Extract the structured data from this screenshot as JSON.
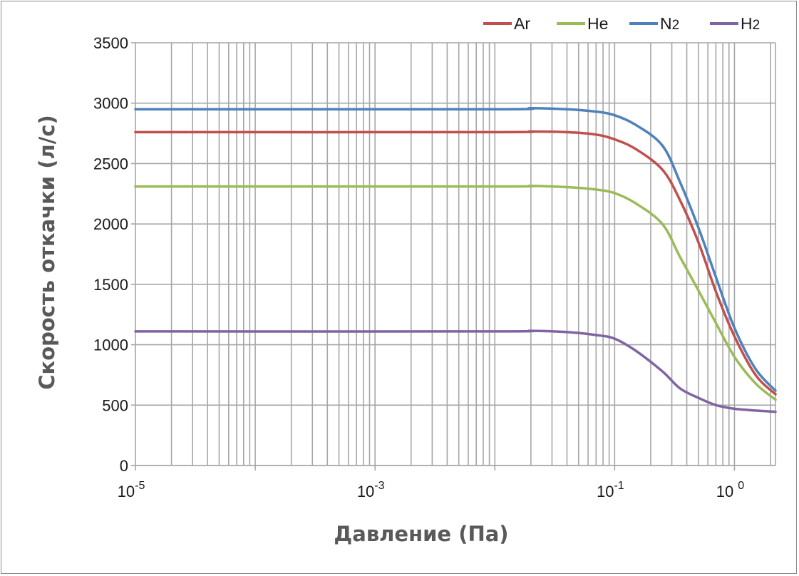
{
  "chart_data": {
    "type": "line",
    "x_scale": "log",
    "xlim": [
      1e-05,
      2.2
    ],
    "ylim": [
      0,
      3500
    ],
    "grid": true,
    "legend_position": "top-right",
    "xlabel": "Давление (Па)",
    "ylabel": "Скорость откачки (л/с)",
    "y_ticks": [
      "0",
      "500",
      "1000",
      "1500",
      "2000",
      "2500",
      "3000",
      "3500"
    ],
    "x_ticks": [
      {
        "base": "10",
        "exp": "-5"
      },
      {
        "base": "10",
        "exp": "-3"
      },
      {
        "base": "10",
        "exp": "-1"
      },
      {
        "base": "10",
        "exp": "0"
      }
    ],
    "series": [
      {
        "name": "Ar",
        "sub": "",
        "color": "#c0504d",
        "x": [
          1e-05,
          0.01,
          0.02,
          0.04,
          0.07,
          0.1,
          0.15,
          0.25,
          0.35,
          0.5,
          0.7,
          1.0,
          1.5,
          2.2
        ],
        "y": [
          2760,
          2760,
          2765,
          2760,
          2740,
          2700,
          2620,
          2450,
          2200,
          1850,
          1440,
          1070,
          750,
          590
        ]
      },
      {
        "name": "He",
        "sub": "",
        "color": "#9bbb59",
        "x": [
          1e-05,
          0.01,
          0.02,
          0.04,
          0.07,
          0.1,
          0.15,
          0.25,
          0.35,
          0.5,
          0.7,
          1.0,
          1.5,
          2.2
        ],
        "y": [
          2310,
          2310,
          2315,
          2305,
          2285,
          2255,
          2170,
          2000,
          1730,
          1450,
          1180,
          900,
          680,
          545
        ]
      },
      {
        "name": "N",
        "sub": "2",
        "color": "#4f81bd",
        "x": [
          1e-05,
          0.01,
          0.02,
          0.04,
          0.07,
          0.1,
          0.15,
          0.25,
          0.35,
          0.5,
          0.7,
          1.0,
          1.5,
          2.2
        ],
        "y": [
          2950,
          2950,
          2958,
          2950,
          2930,
          2900,
          2820,
          2650,
          2350,
          1970,
          1560,
          1140,
          800,
          620
        ]
      },
      {
        "name": "H",
        "sub": "2",
        "color": "#8064a2",
        "x": [
          1e-05,
          0.01,
          0.02,
          0.04,
          0.07,
          0.1,
          0.15,
          0.25,
          0.35,
          0.5,
          0.7,
          1.0,
          1.5,
          2.2
        ],
        "y": [
          1110,
          1110,
          1115,
          1105,
          1080,
          1050,
          950,
          780,
          640,
          560,
          500,
          470,
          455,
          445
        ]
      }
    ]
  }
}
